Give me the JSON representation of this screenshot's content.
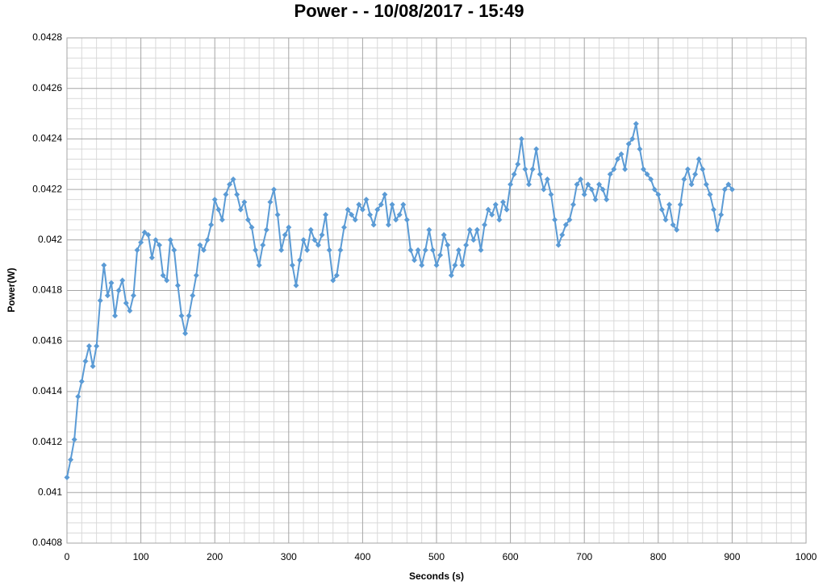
{
  "chart_data": {
    "type": "line",
    "title": "Power -  - 10/08/2017 - 15:49",
    "x_label": "Seconds (s)",
    "y_label": "Power(W)",
    "xlim": [
      0,
      1000
    ],
    "xticks": [
      0,
      100,
      200,
      300,
      400,
      500,
      600,
      700,
      800,
      900,
      1000
    ],
    "ylim": [
      0.0408,
      0.0428
    ],
    "yticks": [
      0.0408,
      0.041,
      0.0412,
      0.0414,
      0.0416,
      0.0418,
      0.042,
      0.0422,
      0.0424,
      0.0426,
      0.0428
    ],
    "grid": true,
    "x": [
      0,
      5,
      10,
      15,
      20,
      25,
      30,
      35,
      40,
      45,
      50,
      55,
      60,
      65,
      70,
      75,
      80,
      85,
      90,
      95,
      100,
      105,
      110,
      115,
      120,
      125,
      130,
      135,
      140,
      145,
      150,
      155,
      160,
      165,
      170,
      175,
      180,
      185,
      190,
      195,
      200,
      205,
      210,
      215,
      220,
      225,
      230,
      235,
      240,
      245,
      250,
      255,
      260,
      265,
      270,
      275,
      280,
      285,
      290,
      295,
      300,
      305,
      310,
      315,
      320,
      325,
      330,
      335,
      340,
      345,
      350,
      355,
      360,
      365,
      370,
      375,
      380,
      385,
      390,
      395,
      400,
      405,
      410,
      415,
      420,
      425,
      430,
      435,
      440,
      445,
      450,
      455,
      460,
      465,
      470,
      475,
      480,
      485,
      490,
      495,
      500,
      505,
      510,
      515,
      520,
      525,
      530,
      535,
      540,
      545,
      550,
      555,
      560,
      565,
      570,
      575,
      580,
      585,
      590,
      595,
      600,
      605,
      610,
      615,
      620,
      625,
      630,
      635,
      640,
      645,
      650,
      655,
      660,
      665,
      670,
      675,
      680,
      685,
      690,
      695,
      700,
      705,
      710,
      715,
      720,
      725,
      730,
      735,
      740,
      745,
      750,
      755,
      760,
      765,
      770,
      775,
      780,
      785,
      790,
      795,
      800,
      805,
      810,
      815,
      820,
      825,
      830,
      835,
      840,
      845,
      850,
      855,
      860,
      865,
      870,
      875,
      880,
      885,
      890,
      895,
      900
    ],
    "series": [
      {
        "name": "Power",
        "color": "#5b9bd5",
        "values": [
          0.04106,
          0.04113,
          0.04121,
          0.04138,
          0.04144,
          0.04152,
          0.04158,
          0.0415,
          0.04158,
          0.04176,
          0.0419,
          0.04178,
          0.04183,
          0.0417,
          0.0418,
          0.04184,
          0.04175,
          0.04172,
          0.04178,
          0.04196,
          0.04199,
          0.04203,
          0.04202,
          0.04193,
          0.042,
          0.04198,
          0.04186,
          0.04184,
          0.042,
          0.04196,
          0.04182,
          0.0417,
          0.04163,
          0.0417,
          0.04178,
          0.04186,
          0.04198,
          0.04196,
          0.042,
          0.04206,
          0.04216,
          0.04212,
          0.04208,
          0.04218,
          0.04222,
          0.04224,
          0.04218,
          0.04212,
          0.04215,
          0.04208,
          0.04205,
          0.04196,
          0.0419,
          0.04198,
          0.04204,
          0.04215,
          0.0422,
          0.0421,
          0.04196,
          0.04202,
          0.04205,
          0.0419,
          0.04182,
          0.04192,
          0.042,
          0.04196,
          0.04204,
          0.042,
          0.04198,
          0.04202,
          0.0421,
          0.04196,
          0.04184,
          0.04186,
          0.04196,
          0.04205,
          0.04212,
          0.0421,
          0.04208,
          0.04214,
          0.04212,
          0.04216,
          0.0421,
          0.04206,
          0.04212,
          0.04214,
          0.04218,
          0.04206,
          0.04214,
          0.04208,
          0.0421,
          0.04214,
          0.04208,
          0.04196,
          0.04192,
          0.04196,
          0.0419,
          0.04196,
          0.04204,
          0.04196,
          0.0419,
          0.04194,
          0.04202,
          0.04198,
          0.04186,
          0.0419,
          0.04196,
          0.0419,
          0.04198,
          0.04204,
          0.042,
          0.04204,
          0.04196,
          0.04206,
          0.04212,
          0.0421,
          0.04214,
          0.04208,
          0.04215,
          0.04212,
          0.04222,
          0.04226,
          0.0423,
          0.0424,
          0.04228,
          0.04222,
          0.04228,
          0.04236,
          0.04226,
          0.0422,
          0.04224,
          0.04218,
          0.04208,
          0.04198,
          0.04202,
          0.04206,
          0.04208,
          0.04214,
          0.04222,
          0.04224,
          0.04218,
          0.04222,
          0.0422,
          0.04216,
          0.04222,
          0.0422,
          0.04216,
          0.04226,
          0.04228,
          0.04232,
          0.04234,
          0.04228,
          0.04238,
          0.0424,
          0.04246,
          0.04236,
          0.04228,
          0.04226,
          0.04224,
          0.0422,
          0.04218,
          0.04212,
          0.04208,
          0.04214,
          0.04206,
          0.04204,
          0.04214,
          0.04224,
          0.04228,
          0.04222,
          0.04226,
          0.04232,
          0.04228,
          0.04222,
          0.04218,
          0.04212,
          0.04204,
          0.0421,
          0.0422,
          0.04222,
          0.0422
        ]
      }
    ]
  }
}
